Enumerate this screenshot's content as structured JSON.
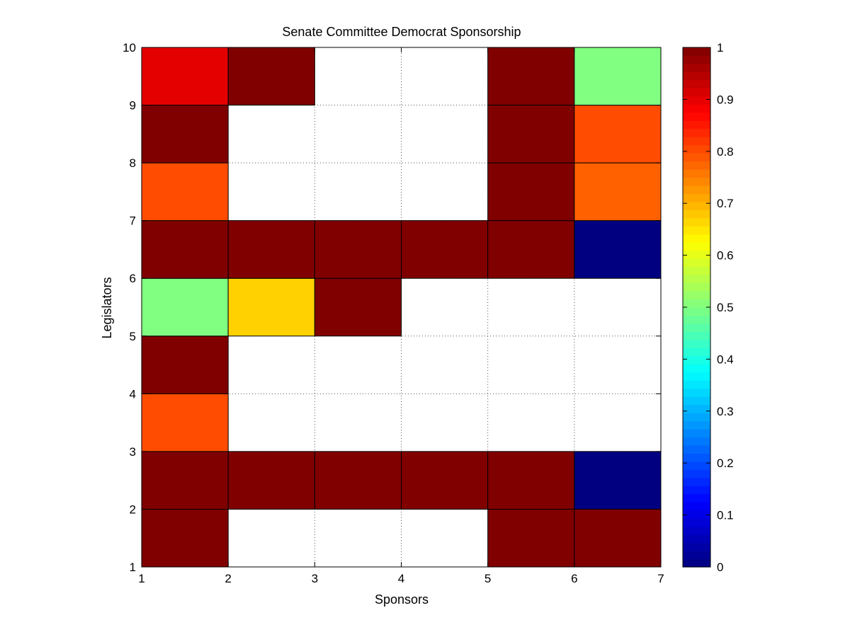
{
  "chart_data": {
    "type": "heatmap",
    "title": "Senate Committee Democrat Sponsorship",
    "xlabel": "Sponsors",
    "ylabel": "Legislators",
    "xlim": [
      1,
      7
    ],
    "ylim": [
      1,
      10
    ],
    "x_ticks": [
      "1",
      "2",
      "3",
      "4",
      "5",
      "6",
      "7"
    ],
    "y_ticks": [
      "1",
      "2",
      "3",
      "4",
      "5",
      "6",
      "7",
      "8",
      "9",
      "10"
    ],
    "grid": true,
    "colormap": "jet",
    "clim": [
      0,
      1
    ],
    "colorbar_ticks": [
      "0",
      "0.1",
      "0.2",
      "0.3",
      "0.4",
      "0.5",
      "0.6",
      "0.7",
      "0.8",
      "0.9",
      "1"
    ],
    "colorbar_placement": "right",
    "cells": [
      {
        "x": 1,
        "y": 1,
        "value": 1.0
      },
      {
        "x": 5,
        "y": 1,
        "value": 1.0
      },
      {
        "x": 6,
        "y": 1,
        "value": 1.0
      },
      {
        "x": 1,
        "y": 2,
        "value": 1.0
      },
      {
        "x": 2,
        "y": 2,
        "value": 1.0
      },
      {
        "x": 3,
        "y": 2,
        "value": 1.0
      },
      {
        "x": 4,
        "y": 2,
        "value": 1.0
      },
      {
        "x": 5,
        "y": 2,
        "value": 1.0
      },
      {
        "x": 6,
        "y": 2,
        "value": 0.0
      },
      {
        "x": 1,
        "y": 3,
        "value": 0.8
      },
      {
        "x": 1,
        "y": 4,
        "value": 1.0
      },
      {
        "x": 1,
        "y": 5,
        "value": 0.5
      },
      {
        "x": 2,
        "y": 5,
        "value": 0.67
      },
      {
        "x": 3,
        "y": 5,
        "value": 1.0
      },
      {
        "x": 1,
        "y": 6,
        "value": 1.0
      },
      {
        "x": 2,
        "y": 6,
        "value": 1.0
      },
      {
        "x": 3,
        "y": 6,
        "value": 1.0
      },
      {
        "x": 4,
        "y": 6,
        "value": 1.0
      },
      {
        "x": 5,
        "y": 6,
        "value": 1.0
      },
      {
        "x": 6,
        "y": 6,
        "value": 0.0
      },
      {
        "x": 1,
        "y": 7,
        "value": 0.8
      },
      {
        "x": 5,
        "y": 7,
        "value": 1.0
      },
      {
        "x": 6,
        "y": 7,
        "value": 0.78
      },
      {
        "x": 1,
        "y": 8,
        "value": 1.0
      },
      {
        "x": 5,
        "y": 8,
        "value": 1.0
      },
      {
        "x": 6,
        "y": 8,
        "value": 0.8
      },
      {
        "x": 1,
        "y": 9,
        "value": 0.9
      },
      {
        "x": 2,
        "y": 9,
        "value": 1.0
      },
      {
        "x": 5,
        "y": 9,
        "value": 1.0
      },
      {
        "x": 6,
        "y": 9,
        "value": 0.5
      }
    ]
  }
}
